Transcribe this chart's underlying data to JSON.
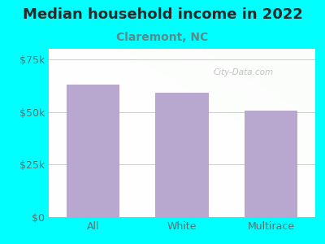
{
  "title": "Median household income in 2022",
  "subtitle": "Claremont, NC",
  "categories": [
    "All",
    "White",
    "Multirace"
  ],
  "values": [
    63000,
    59000,
    50500
  ],
  "bar_color": "#b8a8d0",
  "background_outer": "#00ffff",
  "title_color": "#2a2a2a",
  "subtitle_color": "#5a8a8a",
  "tick_color": "#5a7070",
  "ylim": [
    0,
    80000
  ],
  "yticks": [
    0,
    25000,
    50000,
    75000
  ],
  "ytick_labels": [
    "$0",
    "$25k",
    "$50k",
    "$75k"
  ],
  "watermark": "City-Data.com",
  "title_fontsize": 13,
  "subtitle_fontsize": 10,
  "tick_fontsize": 9,
  "grid_color": "#cccccc"
}
